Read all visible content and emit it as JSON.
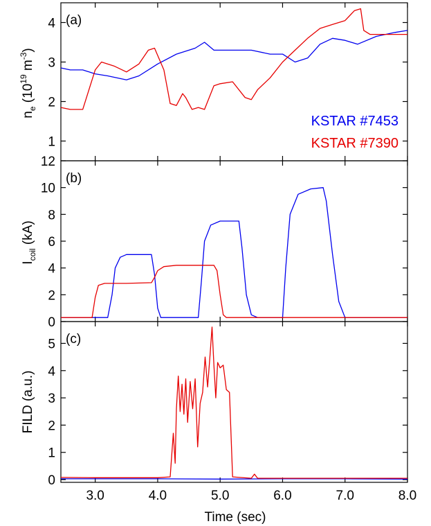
{
  "colors": {
    "blue": "#0000ee",
    "red": "#e60000",
    "axis": "#000000"
  },
  "chart_data": [
    {
      "type": "line",
      "panel": "(a)",
      "title": "",
      "xlabel": "",
      "ylabel": "n",
      "ylabel_sub": "e",
      "ylabel_rest": " (10",
      "ylabel_exp1": "19",
      "ylabel_unit": " m",
      "ylabel_exp2": "-3",
      "ylabel_close": ")",
      "xlim": [
        2.45,
        8.0
      ],
      "ylim": [
        0.5,
        4.5
      ],
      "xticks": [
        3.0,
        4.0,
        5.0,
        6.0,
        7.0,
        8.0
      ],
      "yticks": [
        1,
        2,
        3,
        4
      ],
      "ytick_labels": [
        "1",
        "2",
        "3",
        "4"
      ],
      "legend": {
        "placement": "bottom-right",
        "entries": [
          "KSTAR #7453",
          "KSTAR #7390"
        ]
      },
      "series": [
        {
          "name": "KSTAR #7453",
          "color": "#0000ee",
          "x": [
            2.45,
            2.6,
            2.8,
            3.0,
            3.2,
            3.5,
            3.7,
            4.0,
            4.3,
            4.6,
            4.75,
            4.9,
            5.2,
            5.5,
            5.8,
            6.0,
            6.2,
            6.4,
            6.6,
            6.8,
            7.0,
            7.2,
            7.5,
            7.8,
            8.0
          ],
          "y": [
            2.85,
            2.8,
            2.8,
            2.7,
            2.65,
            2.55,
            2.65,
            2.95,
            3.2,
            3.35,
            3.5,
            3.3,
            3.3,
            3.3,
            3.2,
            3.2,
            3.0,
            3.1,
            3.45,
            3.6,
            3.55,
            3.45,
            3.65,
            3.75,
            3.8
          ]
        },
        {
          "name": "KSTAR #7390",
          "color": "#e60000",
          "x": [
            2.45,
            2.6,
            2.8,
            2.9,
            3.0,
            3.1,
            3.3,
            3.5,
            3.7,
            3.85,
            3.95,
            4.1,
            4.2,
            4.3,
            4.4,
            4.45,
            4.55,
            4.65,
            4.75,
            4.9,
            5.0,
            5.2,
            5.4,
            5.5,
            5.6,
            5.8,
            6.0,
            6.2,
            6.4,
            6.6,
            6.8,
            7.0,
            7.15,
            7.25,
            7.3,
            7.4,
            7.6,
            7.8,
            8.0
          ],
          "y": [
            1.85,
            1.8,
            1.8,
            2.3,
            2.8,
            3.0,
            2.9,
            2.75,
            2.95,
            3.3,
            3.35,
            2.8,
            1.95,
            1.9,
            2.2,
            2.1,
            1.8,
            1.85,
            1.8,
            2.4,
            2.45,
            2.5,
            2.1,
            2.05,
            2.3,
            2.6,
            3.0,
            3.3,
            3.6,
            3.85,
            3.95,
            4.05,
            4.3,
            4.35,
            3.8,
            3.7,
            3.7,
            3.7,
            3.7
          ]
        }
      ]
    },
    {
      "type": "line",
      "panel": "(b)",
      "title": "",
      "xlabel": "",
      "ylabel": "I",
      "ylabel_sub": "coil",
      "ylabel_rest": " (kA)",
      "xlim": [
        2.45,
        8.0
      ],
      "ylim": [
        0,
        12
      ],
      "xticks": [
        3.0,
        4.0,
        5.0,
        6.0,
        7.0,
        8.0
      ],
      "yticks": [
        0,
        2,
        4,
        6,
        8,
        10,
        12
      ],
      "ytick_labels": [
        "0",
        "2",
        "4",
        "6",
        "8",
        "10",
        "12"
      ],
      "series": [
        {
          "name": "KSTAR #7453",
          "color": "#0000ee",
          "x": [
            2.45,
            3.2,
            3.27,
            3.32,
            3.4,
            3.5,
            3.9,
            3.95,
            4.0,
            4.05,
            4.65,
            4.7,
            4.75,
            4.85,
            5.0,
            5.3,
            5.35,
            5.42,
            5.5,
            5.6,
            6.0,
            6.05,
            6.12,
            6.25,
            6.45,
            6.65,
            6.7,
            6.8,
            6.9,
            7.0,
            8.0
          ],
          "y": [
            0.3,
            0.3,
            2.0,
            4.0,
            4.8,
            5.0,
            5.0,
            3.5,
            1.0,
            0.3,
            0.3,
            3.0,
            6.0,
            7.2,
            7.5,
            7.5,
            5.5,
            2.0,
            0.5,
            0.3,
            0.3,
            4.0,
            8.0,
            9.5,
            9.9,
            10.0,
            9.0,
            5.0,
            1.5,
            0.3,
            0.3
          ]
        },
        {
          "name": "KSTAR #7390",
          "color": "#e60000",
          "x": [
            2.45,
            2.95,
            3.0,
            3.05,
            3.15,
            3.5,
            3.9,
            3.95,
            4.0,
            4.1,
            4.3,
            4.9,
            4.95,
            5.0,
            5.05,
            5.1,
            8.0
          ],
          "y": [
            0.3,
            0.3,
            1.8,
            2.7,
            2.85,
            2.85,
            2.9,
            3.3,
            3.8,
            4.1,
            4.2,
            4.2,
            3.8,
            2.0,
            0.5,
            0.3,
            0.3
          ]
        }
      ]
    },
    {
      "type": "line",
      "panel": "(c)",
      "title": "",
      "xlabel": "Time (sec)",
      "ylabel": "FILD (a.u.)",
      "xlim": [
        2.45,
        8.0
      ],
      "ylim": [
        -0.1,
        5.8
      ],
      "xticks": [
        3.0,
        4.0,
        5.0,
        6.0,
        7.0,
        8.0
      ],
      "xtick_labels": [
        "3.0",
        "4.0",
        "5.0",
        "6.0",
        "7.0",
        "8.0"
      ],
      "yticks": [
        0,
        1,
        2,
        3,
        4,
        5
      ],
      "ytick_labels": [
        "0",
        "1",
        "2",
        "3",
        "4",
        "5"
      ],
      "series": [
        {
          "name": "KSTAR #7453",
          "color": "#0000ee",
          "x": [
            2.45,
            4.0,
            5.0,
            6.0,
            7.0,
            8.0
          ],
          "y": [
            0.03,
            0.03,
            0.02,
            0.03,
            0.03,
            0.02
          ]
        },
        {
          "name": "KSTAR #7390",
          "color": "#e60000",
          "x": [
            2.45,
            3.0,
            4.0,
            4.2,
            4.25,
            4.28,
            4.3,
            4.33,
            4.36,
            4.39,
            4.42,
            4.45,
            4.48,
            4.52,
            4.56,
            4.6,
            4.64,
            4.68,
            4.72,
            4.76,
            4.8,
            4.84,
            4.87,
            4.9,
            4.93,
            4.96,
            5.0,
            5.05,
            5.1,
            5.15,
            5.2,
            5.5,
            5.55,
            5.6,
            6.0,
            8.0
          ],
          "y": [
            0.08,
            0.07,
            0.07,
            0.1,
            1.7,
            0.6,
            2.6,
            3.8,
            2.5,
            3.5,
            2.4,
            3.7,
            2.1,
            3.6,
            2.6,
            3.7,
            1.2,
            2.8,
            3.2,
            4.5,
            3.4,
            4.6,
            5.6,
            4.2,
            3.0,
            4.3,
            4.1,
            4.2,
            3.3,
            3.2,
            0.1,
            0.05,
            0.2,
            0.05,
            0.05,
            0.05
          ]
        }
      ]
    }
  ]
}
